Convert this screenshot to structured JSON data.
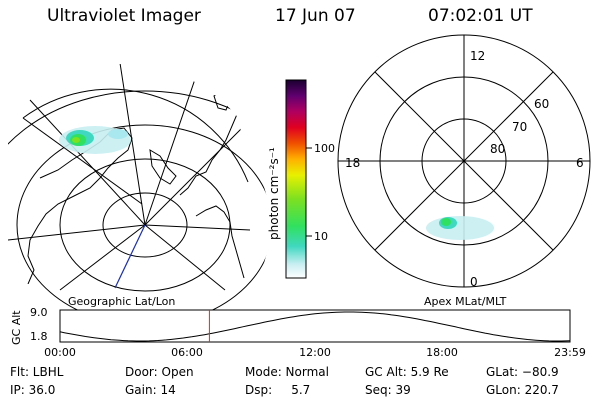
{
  "header": {
    "instrument": "Ultraviolet Imager",
    "date": "17 Jun 07",
    "time": "07:02:01 UT"
  },
  "colorbar": {
    "label": "photon cm⁻²s⁻¹",
    "ticks": [
      "100",
      "10"
    ]
  },
  "geo_panel": {
    "caption": "Geographic Lat/Lon"
  },
  "polar_panel": {
    "caption": "Apex MLat/MLT",
    "mlt_labels": {
      "top": "12",
      "left": "18",
      "right": "6",
      "bottom": "0"
    },
    "lat_labels": [
      "60",
      "70",
      "80"
    ]
  },
  "altitude_plot": {
    "ylabel": "GC Alt",
    "yticks": [
      "9.0",
      "1.8"
    ],
    "xticks": [
      "00:00",
      "06:00",
      "12:00",
      "18:00",
      "23:59"
    ],
    "marker_time_hours": 7.03
  },
  "status": {
    "filter": "Flt: LBHL",
    "ip": "IP: 36.0",
    "door": "Door: Open",
    "gain": "Gain: 14",
    "mode": "Mode: Normal",
    "dsp": "Dsp:     5.7",
    "gc_alt": "GC Alt: 5.9 Re",
    "seq": "Seq: 39",
    "glat": "GLat: −80.9",
    "glon": "GLon: 220.7"
  },
  "colors": {
    "orbit_marker": "#d03020",
    "meridian": "#1a2fb0"
  }
}
